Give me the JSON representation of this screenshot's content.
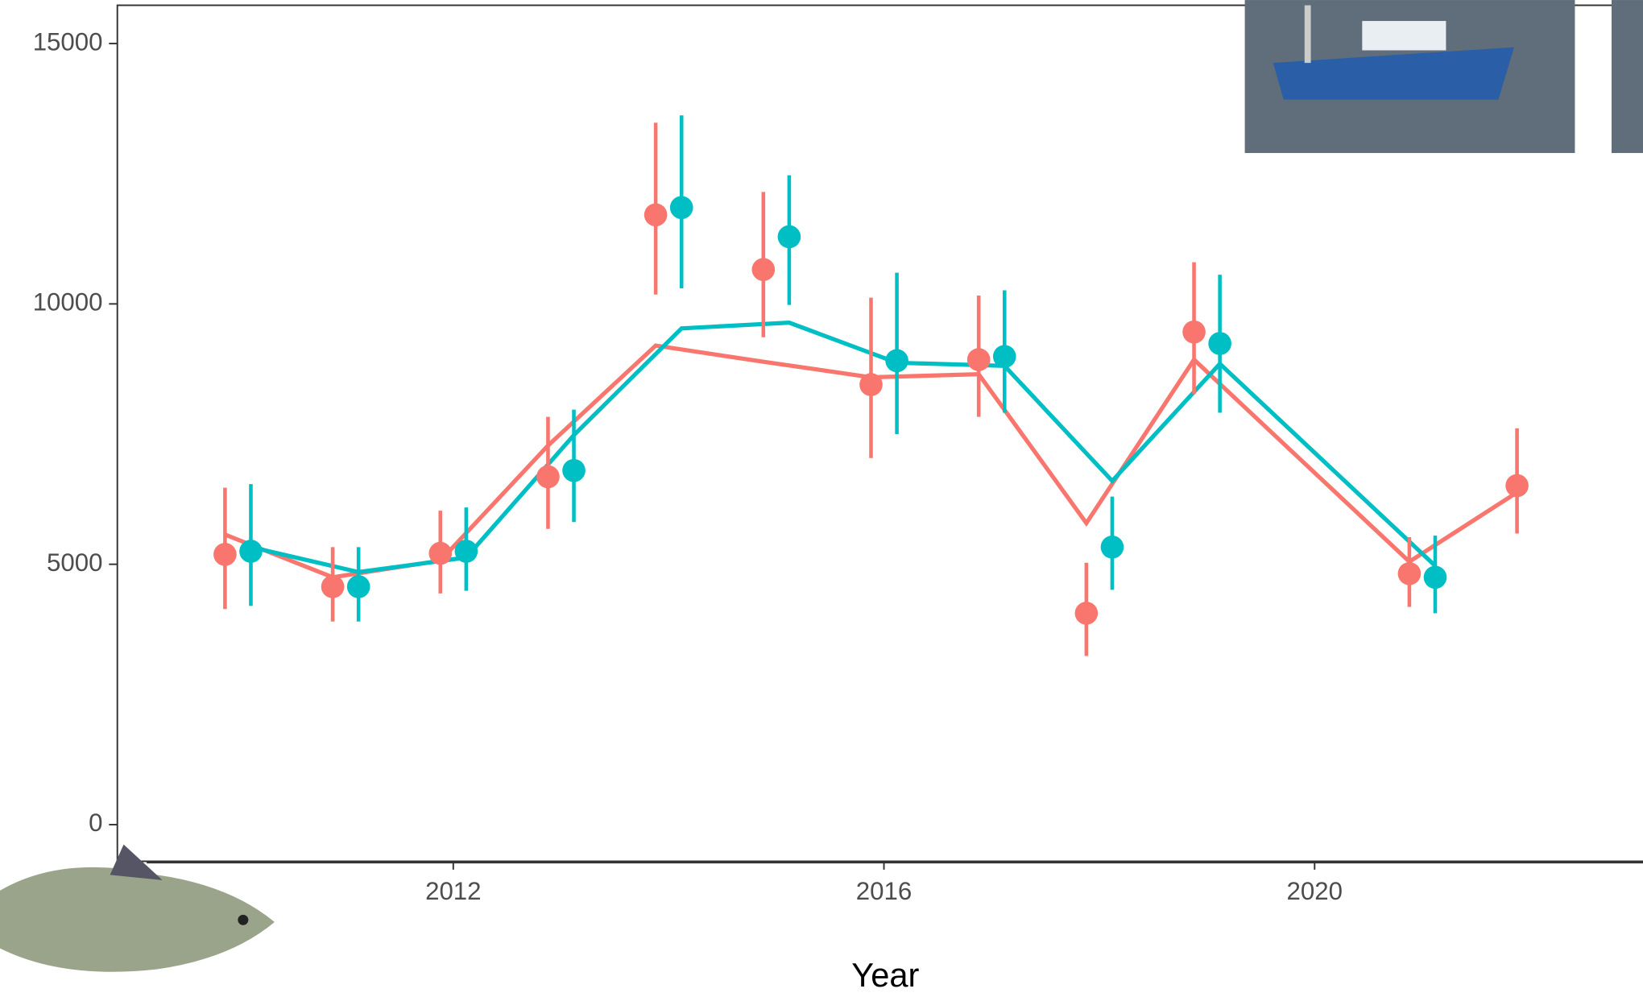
{
  "chart_data": {
    "type": "pointrange-line",
    "x_label": "Year",
    "xlim": [
      2008.88,
      2023.05
    ],
    "xticks": [
      2012,
      2016,
      2020
    ],
    "ylim": [
      -704,
      15735
    ],
    "yticks": [
      0,
      5000,
      10000,
      15000
    ],
    "series": [
      {
        "color": "#f8766d",
        "x": [
          2010,
          2011,
          2012,
          2013,
          2014,
          2015,
          2016,
          2017,
          2018,
          2019,
          2021,
          2022
        ],
        "values": [
          5190,
          4570,
          5210,
          6680,
          11710,
          10660,
          8450,
          8930,
          4060,
          9460,
          4820,
          6510
        ],
        "error_low": [
          4140,
          3900,
          4440,
          5680,
          10180,
          9360,
          7040,
          7830,
          3240,
          8270,
          4180,
          5590
        ],
        "error_high": [
          6470,
          5330,
          6030,
          7830,
          13480,
          12150,
          10120,
          10160,
          5030,
          10800,
          5520,
          7610
        ],
        "fit": [
          5570,
          4750,
          5070,
          7280,
          9200,
          8890,
          8590,
          8650,
          5790,
          8930,
          5050,
          6380
        ]
      },
      {
        "color": "#00bfc4",
        "x": [
          2010,
          2011,
          2012,
          2013,
          2014,
          2015,
          2016,
          2017,
          2018,
          2019,
          2021
        ],
        "values": [
          5250,
          4570,
          5250,
          6800,
          11850,
          11290,
          8910,
          8990,
          5330,
          9240,
          4750
        ],
        "error_low": [
          4200,
          3900,
          4490,
          5810,
          10300,
          9980,
          7500,
          7910,
          4510,
          7910,
          4060
        ],
        "error_high": [
          6540,
          5330,
          6090,
          7970,
          13620,
          12470,
          10600,
          10260,
          6300,
          10560,
          5550
        ],
        "fit": [
          5330,
          4850,
          5130,
          7480,
          9530,
          9640,
          8870,
          8810,
          6600,
          8850,
          4970
        ]
      }
    ]
  }
}
